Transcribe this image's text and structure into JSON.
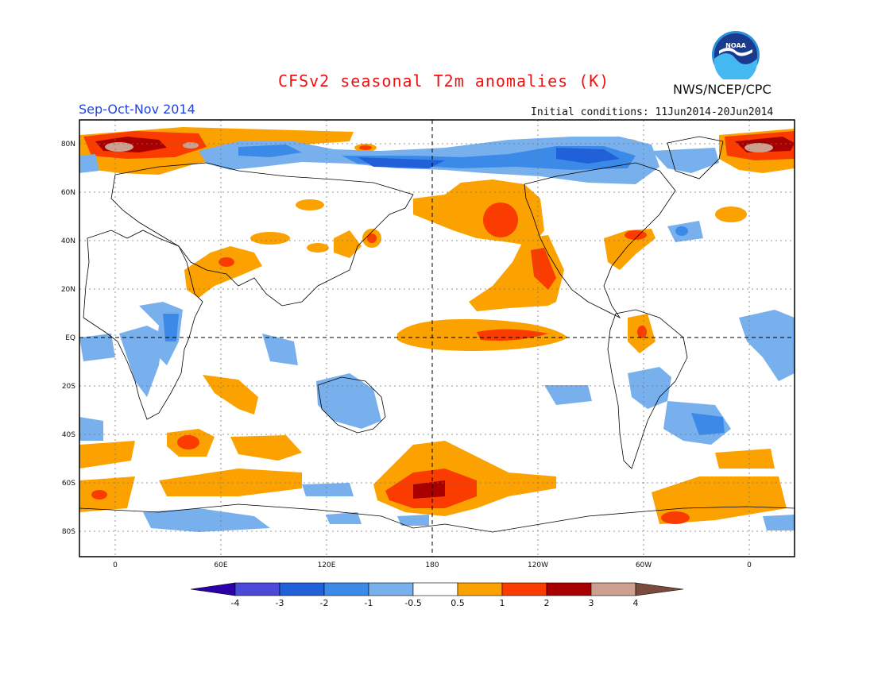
{
  "header": {
    "title": "CFSv2 seasonal T2m anomalies (K)",
    "agency": "NWS/NCEP/CPC",
    "season": "Sep-Oct-Nov 2014",
    "initial_conditions": "Initial conditions: 11Jun2014-20Jun2014",
    "logo_text": "NOAA"
  },
  "map": {
    "projection": "cylindrical-equidistant",
    "lon_range": [
      -20,
      380
    ],
    "lat_range": [
      -90,
      90
    ],
    "lat_labels": [
      "80N",
      "60N",
      "40N",
      "20N",
      "EQ",
      "20S",
      "40S",
      "60S",
      "80S"
    ],
    "lon_labels": [
      "0",
      "60E",
      "120E",
      "180",
      "120W",
      "60W",
      "0"
    ],
    "grid": true
  },
  "colorbar": {
    "labels": [
      "-4",
      "-3",
      "-2",
      "-1",
      "-0.5",
      "0.5",
      "1",
      "2",
      "3",
      "4"
    ],
    "colors": [
      "#2b00a8",
      "#4b4ad8",
      "#2060d8",
      "#3c8ae8",
      "#78b0ee",
      "#ffffff",
      "#fba200",
      "#fb3c00",
      "#a80000",
      "#cc9f8e",
      "#7a4a3c"
    ]
  },
  "anomaly_colors": {
    "light_warm": "#fba200",
    "warm": "#fb3c00",
    "hot": "#a80000",
    "very_hot": "#cc9f8e",
    "light_cool": "#78b0ee",
    "cool": "#3c8ae8",
    "cold": "#2060d8"
  }
}
